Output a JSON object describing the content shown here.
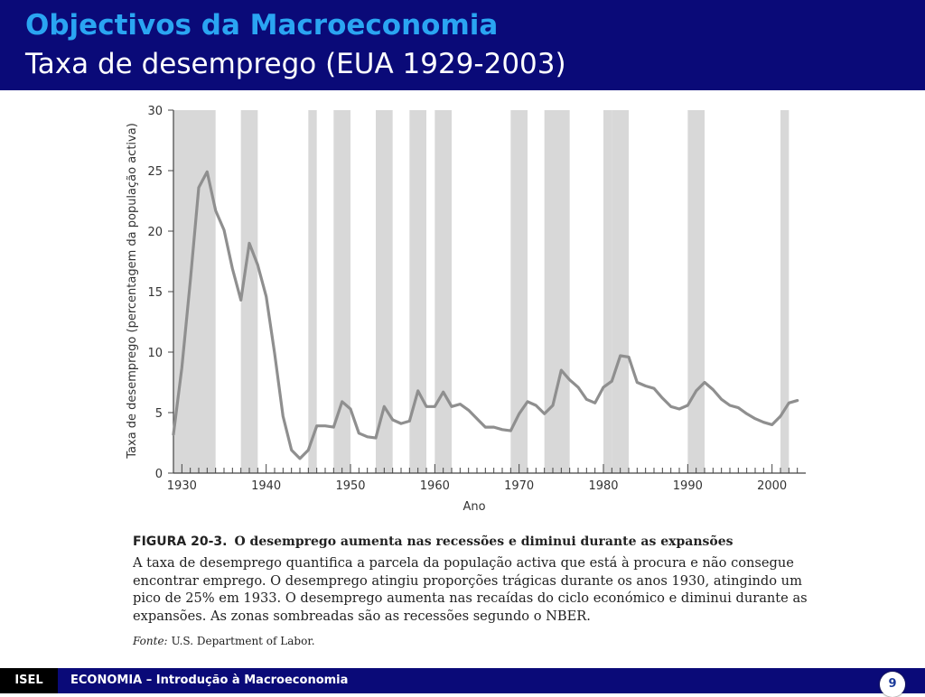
{
  "header": {
    "title": "Objectivos da Macroeconomia",
    "subtitle": "Taxa de desemprego (EUA 1929-2003)"
  },
  "chart_data": {
    "type": "line",
    "xlabel": "Ano",
    "ylabel": "Taxa de desemprego (percentagem da população activa)",
    "xlim": [
      1929,
      2004
    ],
    "ylim": [
      0,
      30
    ],
    "x_ticks": [
      1930,
      1940,
      1950,
      1960,
      1970,
      1980,
      1990,
      2000
    ],
    "y_ticks": [
      0,
      5,
      10,
      15,
      20,
      25,
      30
    ],
    "series": [
      {
        "x": [
          1929,
          1930,
          1931,
          1932,
          1933,
          1934,
          1935,
          1936,
          1937,
          1938,
          1939,
          1940,
          1941,
          1942,
          1943,
          1944,
          1945,
          1946,
          1947,
          1948,
          1949,
          1950,
          1951,
          1952,
          1953,
          1954,
          1955,
          1956,
          1957,
          1958,
          1959,
          1960,
          1961,
          1962,
          1963,
          1964,
          1965,
          1966,
          1967,
          1968,
          1969,
          1970,
          1971,
          1972,
          1973,
          1974,
          1975,
          1976,
          1977,
          1978,
          1979,
          1980,
          1981,
          1982,
          1983,
          1984,
          1985,
          1986,
          1987,
          1988,
          1989,
          1990,
          1991,
          1992,
          1993,
          1994,
          1995,
          1996,
          1997,
          1998,
          1999,
          2000,
          2001,
          2002,
          2003
        ],
        "values": [
          3.2,
          8.7,
          15.9,
          23.6,
          24.9,
          21.7,
          20.1,
          16.9,
          14.3,
          19.0,
          17.2,
          14.6,
          9.9,
          4.7,
          1.9,
          1.2,
          1.9,
          3.9,
          3.9,
          3.8,
          5.9,
          5.3,
          3.3,
          3.0,
          2.9,
          5.5,
          4.4,
          4.1,
          4.3,
          6.8,
          5.5,
          5.5,
          6.7,
          5.5,
          5.7,
          5.2,
          4.5,
          3.8,
          3.8,
          3.6,
          3.5,
          4.9,
          5.9,
          5.6,
          4.9,
          5.6,
          8.5,
          7.7,
          7.1,
          6.1,
          5.8,
          7.1,
          7.6,
          9.7,
          9.6,
          7.5,
          7.2,
          7.0,
          6.2,
          5.5,
          5.3,
          5.6,
          6.8,
          7.5,
          6.9,
          6.1,
          5.6,
          5.4,
          4.9,
          4.5,
          4.2,
          4.0,
          4.7,
          5.8,
          6.0
        ]
      }
    ],
    "recessions": [
      [
        1929,
        1933
      ],
      [
        1937,
        1938
      ],
      [
        1945,
        1945
      ],
      [
        1948,
        1949
      ],
      [
        1953,
        1954
      ],
      [
        1957,
        1958
      ],
      [
        1960,
        1961
      ],
      [
        1969,
        1970
      ],
      [
        1973,
        1975
      ],
      [
        1980,
        1980
      ],
      [
        1981,
        1982
      ],
      [
        1990,
        1991
      ],
      [
        2001,
        2001
      ]
    ],
    "shade_color": "#d8d8d8",
    "line_color": "#8f8f8f"
  },
  "figure": {
    "label": "FIGURA 20-3.",
    "heading": "O desemprego aumenta nas recessões e diminui durante as expansões",
    "text": "A taxa de desemprego quantifica a parcela da população activa que está à procura e não consegue encontrar emprego. O desemprego atingiu proporções trágicas durante os anos 1930, atingindo um pico de 25% em 1933. O desemprego aumenta nas recaídas do ciclo económico e diminui durante as expansões. As zonas sombreadas são as recessões segundo o NBER.",
    "source_label": "Fonte:",
    "source_text": "U.S. Department of Labor."
  },
  "footer": {
    "org": "ISEL",
    "course": "ECONOMIA – Introdução à Macroeconomia",
    "page": "9"
  },
  "colors": {
    "header_bg": "#0a0a78",
    "title": "#2aa5f2"
  }
}
